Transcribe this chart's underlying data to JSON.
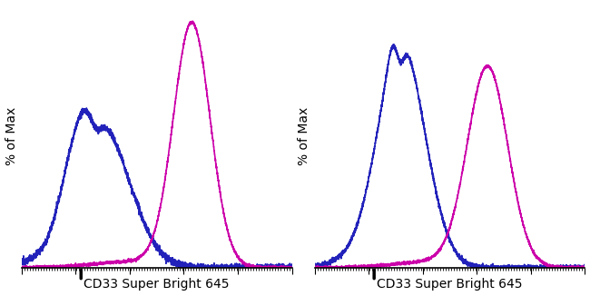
{
  "xlabel": "CD33 Super Bright 645",
  "ylabel": "% of Max",
  "bg_color": "#ffffff",
  "blue_color": "#2222bb",
  "magenta_color": "#cc00aa",
  "xmin": 0.0,
  "xmax": 1.0,
  "ymin": 0.0,
  "ymax": 1.08,
  "linewidth": 1.2,
  "figsize": [
    6.5,
    3.26
  ],
  "dpi": 100
}
